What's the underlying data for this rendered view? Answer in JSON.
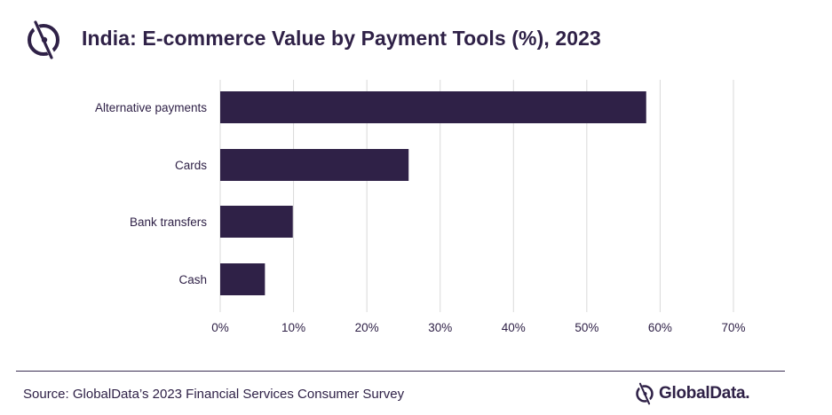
{
  "header": {
    "title": "India: E-commerce Value by Payment Tools (%), 2023",
    "logo_icon": "globaldata-logo-icon"
  },
  "footer": {
    "source": "Source: GlobalData’s 2023 Financial Services Consumer Survey",
    "brand": "GlobalData."
  },
  "colors": {
    "bar": "#2f2147",
    "grid": "#d9d9d9",
    "text": "#2f2147"
  },
  "chart_data": {
    "type": "bar",
    "orientation": "horizontal",
    "title": "India: E-commerce Value by Payment Tools (%), 2023",
    "categories": [
      "Alternative payments",
      "Cards",
      "Bank transfers",
      "Cash"
    ],
    "values": [
      58.1,
      25.7,
      9.9,
      6.1
    ],
    "xlim": [
      0,
      70
    ],
    "x_ticks": [
      "0%",
      "10%",
      "20%",
      "30%",
      "40%",
      "50%",
      "60%",
      "70%"
    ],
    "grid": "vertical",
    "legend": "none"
  }
}
